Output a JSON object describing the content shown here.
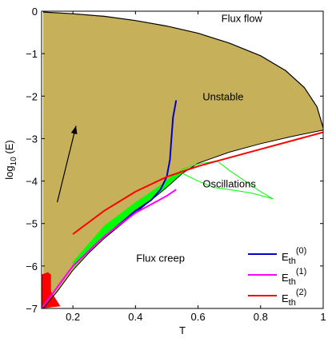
{
  "chart_data": {
    "type": "area",
    "xlabel": "T",
    "ylabel_parts": {
      "base": "log",
      "sub": "10",
      "rest": " (E)"
    },
    "xlim": [
      0.1,
      1.0
    ],
    "ylim": [
      -7,
      0
    ],
    "xticks": [
      0.2,
      0.4,
      0.6,
      0.8,
      1
    ],
    "xtick_labels": [
      "0.2",
      "0.4",
      "0.6",
      "0.8",
      "1"
    ],
    "yticks": [
      0,
      -1,
      -2,
      -3,
      -4,
      -5,
      -6,
      -7
    ],
    "ytick_labels": [
      "0",
      "−1",
      "−2",
      "−3",
      "−4",
      "−5",
      "−6",
      "−7"
    ],
    "region_labels": [
      {
        "text": "Flux flow",
        "x": 0.74,
        "y": -0.25
      },
      {
        "text": "Unstable",
        "x": 0.68,
        "y": -2.1
      },
      {
        "text": "Oscillations",
        "x": 0.7,
        "y": -4.15
      },
      {
        "text": "Flux creep",
        "x": 0.48,
        "y": -5.9
      }
    ],
    "colors": {
      "unstable": "#c6b15a",
      "oscillation_band": "#00ff00",
      "small_region": "#ff0000",
      "boundary": "#000000",
      "Eth0": "#0000cc",
      "Eth1": "#ff00ff",
      "Eth2": "#ff0000"
    },
    "upper_boundary": [
      [
        0.105,
        -0.02
      ],
      [
        0.2,
        -0.06
      ],
      [
        0.3,
        -0.12
      ],
      [
        0.4,
        -0.22
      ],
      [
        0.5,
        -0.35
      ],
      [
        0.6,
        -0.52
      ],
      [
        0.7,
        -0.75
      ],
      [
        0.8,
        -1.05
      ],
      [
        0.88,
        -1.4
      ],
      [
        0.94,
        -1.8
      ],
      [
        0.98,
        -2.25
      ],
      [
        1.0,
        -2.75
      ]
    ],
    "lower_boundary": [
      [
        0.105,
        -7.0
      ],
      [
        0.15,
        -6.6
      ],
      [
        0.2,
        -6.1
      ],
      [
        0.25,
        -5.7
      ],
      [
        0.3,
        -5.35
      ],
      [
        0.35,
        -5.05
      ],
      [
        0.4,
        -4.75
      ],
      [
        0.45,
        -4.45
      ],
      [
        0.5,
        -4.15
      ],
      [
        0.55,
        -3.82
      ],
      [
        0.6,
        -3.58
      ],
      [
        0.7,
        -3.32
      ],
      [
        0.8,
        -3.12
      ],
      [
        0.9,
        -2.95
      ],
      [
        1.0,
        -2.8
      ]
    ],
    "green_band_lower": [
      [
        0.2,
        -6.05
      ],
      [
        0.3,
        -5.3
      ],
      [
        0.4,
        -4.75
      ],
      [
        0.45,
        -4.45
      ],
      [
        0.5,
        -4.15
      ],
      [
        0.55,
        -3.8
      ]
    ],
    "green_band_upper": [
      [
        0.2,
        -5.9
      ],
      [
        0.3,
        -5.05
      ],
      [
        0.4,
        -4.5
      ],
      [
        0.48,
        -4.1
      ],
      [
        0.52,
        -3.85
      ],
      [
        0.55,
        -3.75
      ]
    ],
    "oscillation_curves": [
      [
        [
          0.55,
          -3.72
        ],
        [
          0.6,
          -3.6
        ],
        [
          0.64,
          -3.55
        ],
        [
          0.66,
          -3.52
        ],
        [
          0.7,
          -3.75
        ],
        [
          0.75,
          -4.0
        ],
        [
          0.8,
          -4.25
        ],
        [
          0.84,
          -4.42
        ]
      ],
      [
        [
          0.55,
          -3.82
        ],
        [
          0.6,
          -4.0
        ],
        [
          0.65,
          -4.15
        ],
        [
          0.7,
          -4.2
        ],
        [
          0.77,
          -4.28
        ],
        [
          0.84,
          -4.42
        ]
      ],
      [
        [
          0.2,
          -5.92
        ],
        [
          0.3,
          -5.25
        ],
        [
          0.4,
          -4.7
        ],
        [
          0.5,
          -4.05
        ],
        [
          0.55,
          -3.72
        ]
      ]
    ],
    "small_red_region": [
      [
        0.1,
        -6.2
      ],
      [
        0.12,
        -6.15
      ],
      [
        0.13,
        -6.2
      ],
      [
        0.13,
        -6.6
      ],
      [
        0.16,
        -6.95
      ],
      [
        0.1,
        -7.0
      ]
    ],
    "series": [
      {
        "name_base": "E",
        "name_sub": "th",
        "name_sup": "(0)",
        "color": "#0000cc",
        "points": [
          [
            0.32,
            -5.2
          ],
          [
            0.4,
            -4.7
          ],
          [
            0.45,
            -4.45
          ],
          [
            0.48,
            -4.2
          ],
          [
            0.5,
            -3.9
          ],
          [
            0.51,
            -3.5
          ],
          [
            0.515,
            -3.0
          ],
          [
            0.52,
            -2.5
          ],
          [
            0.53,
            -2.1
          ]
        ]
      },
      {
        "name_base": "E",
        "name_sub": "th",
        "name_sup": "(1)",
        "color": "#ff00ff",
        "points": [
          [
            0.1,
            -7.0
          ],
          [
            0.15,
            -6.5
          ],
          [
            0.2,
            -6.0
          ],
          [
            0.3,
            -5.3
          ],
          [
            0.4,
            -4.75
          ],
          [
            0.5,
            -4.35
          ],
          [
            0.53,
            -4.2
          ]
        ]
      },
      {
        "name_base": "E",
        "name_sub": "th",
        "name_sup": "(2)",
        "color": "#ff0000",
        "points": [
          [
            0.2,
            -5.25
          ],
          [
            0.3,
            -4.7
          ],
          [
            0.4,
            -4.25
          ],
          [
            0.5,
            -3.9
          ],
          [
            0.6,
            -3.65
          ],
          [
            0.7,
            -3.45
          ],
          [
            0.8,
            -3.25
          ],
          [
            0.9,
            -3.05
          ],
          [
            1.0,
            -2.85
          ]
        ]
      }
    ],
    "arrow": {
      "from": [
        0.15,
        -4.5
      ],
      "to": [
        0.21,
        -2.7
      ]
    },
    "legend_position": "bottom-right",
    "grid": false
  }
}
